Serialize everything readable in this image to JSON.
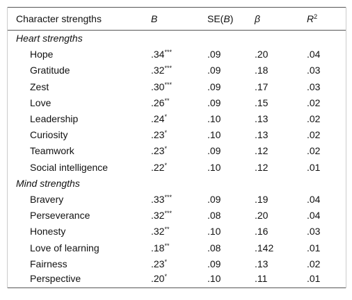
{
  "table": {
    "header": {
      "strength": "Character strengths",
      "b": "B",
      "se": [
        "SE(",
        "B",
        ")"
      ],
      "beta": "β",
      "r2": [
        "R",
        "2"
      ]
    },
    "groups": [
      {
        "title": "Heart strengths",
        "rows": [
          {
            "name": "Hope",
            "b": ".34",
            "sig": "***",
            "se": ".09",
            "beta": ".20",
            "r2": ".04"
          },
          {
            "name": "Gratitude",
            "b": ".32",
            "sig": "***",
            "se": ".09",
            "beta": ".18",
            "r2": ".03"
          },
          {
            "name": "Zest",
            "b": ".30",
            "sig": "***",
            "se": ".09",
            "beta": ".17",
            "r2": ".03"
          },
          {
            "name": "Love",
            "b": ".26",
            "sig": "**",
            "se": ".09",
            "beta": ".15",
            "r2": ".02"
          },
          {
            "name": "Leadership",
            "b": ".24",
            "sig": "*",
            "se": ".10",
            "beta": ".13",
            "r2": ".02"
          },
          {
            "name": "Curiosity",
            "b": ".23",
            "sig": "*",
            "se": ".10",
            "beta": ".13",
            "r2": ".02"
          },
          {
            "name": "Teamwork",
            "b": ".23",
            "sig": "*",
            "se": ".09",
            "beta": ".12",
            "r2": ".02"
          },
          {
            "name": "Social intelligence",
            "b": ".22",
            "sig": "*",
            "se": ".10",
            "beta": ".12",
            "r2": ".01"
          }
        ]
      },
      {
        "title": "Mind strengths",
        "rows": [
          {
            "name": "Bravery",
            "b": ".33",
            "sig": "***",
            "se": ".09",
            "beta": ".19",
            "r2": ".04"
          },
          {
            "name": "Perseverance",
            "b": ".32",
            "sig": "***",
            "se": ".08",
            "beta": ".20",
            "r2": ".04"
          },
          {
            "name": "Honesty",
            "b": ".32",
            "sig": "**",
            "se": ".10",
            "beta": ".16",
            "r2": ".03"
          },
          {
            "name": "Love of learning",
            "b": ".18",
            "sig": "**",
            "se": ".08",
            "beta": ".142",
            "r2": ".01"
          },
          {
            "name": "Fairness",
            "b": ".23",
            "sig": "*",
            "se": ".09",
            "beta": ".13",
            "r2": ".02"
          },
          {
            "name": "Perspective",
            "b": ".20",
            "sig": "*",
            "se": ".10",
            "beta": ".11",
            "r2": ".01"
          }
        ]
      }
    ]
  }
}
